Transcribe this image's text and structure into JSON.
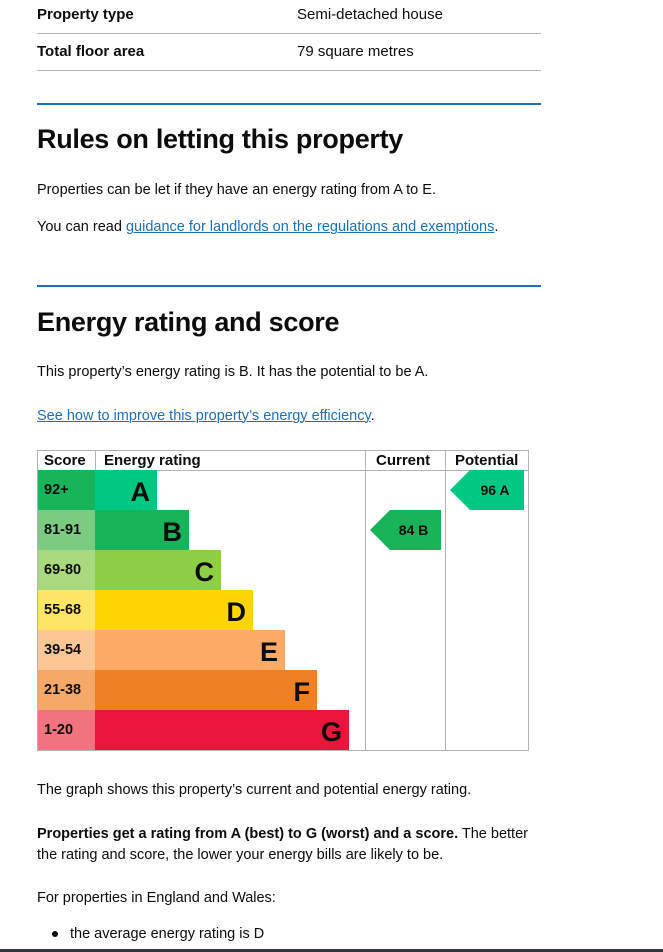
{
  "summary": {
    "rows": [
      {
        "key": "Property type",
        "value": "Semi-detached house"
      },
      {
        "key": "Total floor area",
        "value": "79 square metres"
      }
    ]
  },
  "rules": {
    "heading": "Rules on letting this property",
    "para1": "Properties can be let if they have an energy rating from A to E.",
    "para2_prefix": "You can read ",
    "para2_link": "guidance for landlords on the regulations and exemptions",
    "para2_suffix": "."
  },
  "energy": {
    "heading": "Energy rating and score",
    "intro": "This property’s energy rating is B. It has the potential to be A.",
    "improve_link": "See how to improve this property’s energy efficiency",
    "improve_suffix": "."
  },
  "chart_data": {
    "type": "table",
    "headers": {
      "score": "Score",
      "rating": "Energy rating",
      "current": "Current",
      "potential": "Potential"
    },
    "bands": [
      {
        "score": "92+",
        "letter": "A",
        "color": "#00c781",
        "scoreColor": "#19b459"
      },
      {
        "score": "81-91",
        "letter": "B",
        "color": "#19b459",
        "scoreColor": "#7bcb81"
      },
      {
        "score": "69-80",
        "letter": "C",
        "color": "#8dce46",
        "scoreColor": "#a8d97f"
      },
      {
        "score": "55-68",
        "letter": "D",
        "color": "#ffd500",
        "scoreColor": "#ffe566"
      },
      {
        "score": "39-54",
        "letter": "E",
        "color": "#fcaa65",
        "scoreColor": "#fdc795"
      },
      {
        "score": "21-38",
        "letter": "F",
        "color": "#ef8023",
        "scoreColor": "#f5a868"
      },
      {
        "score": "1-20",
        "letter": "G",
        "color": "#e9153b",
        "scoreColor": "#f0737f"
      }
    ],
    "current": {
      "score": 84,
      "letter": "B",
      "label": "84 B",
      "band": "B",
      "color": "#19b459"
    },
    "potential": {
      "score": 96,
      "letter": "A",
      "label": "96 A",
      "band": "A",
      "color": "#00c781"
    }
  },
  "explanation": {
    "graph_text": "The graph shows this property’s current and potential energy rating.",
    "bold_text": "Properties get a rating from A (best) to G (worst) and a score.",
    "rest_text": " The better the rating and score, the lower your energy bills are likely to be.",
    "region_text": "For properties in England and Wales:",
    "bullet1": "the average energy rating is D"
  }
}
